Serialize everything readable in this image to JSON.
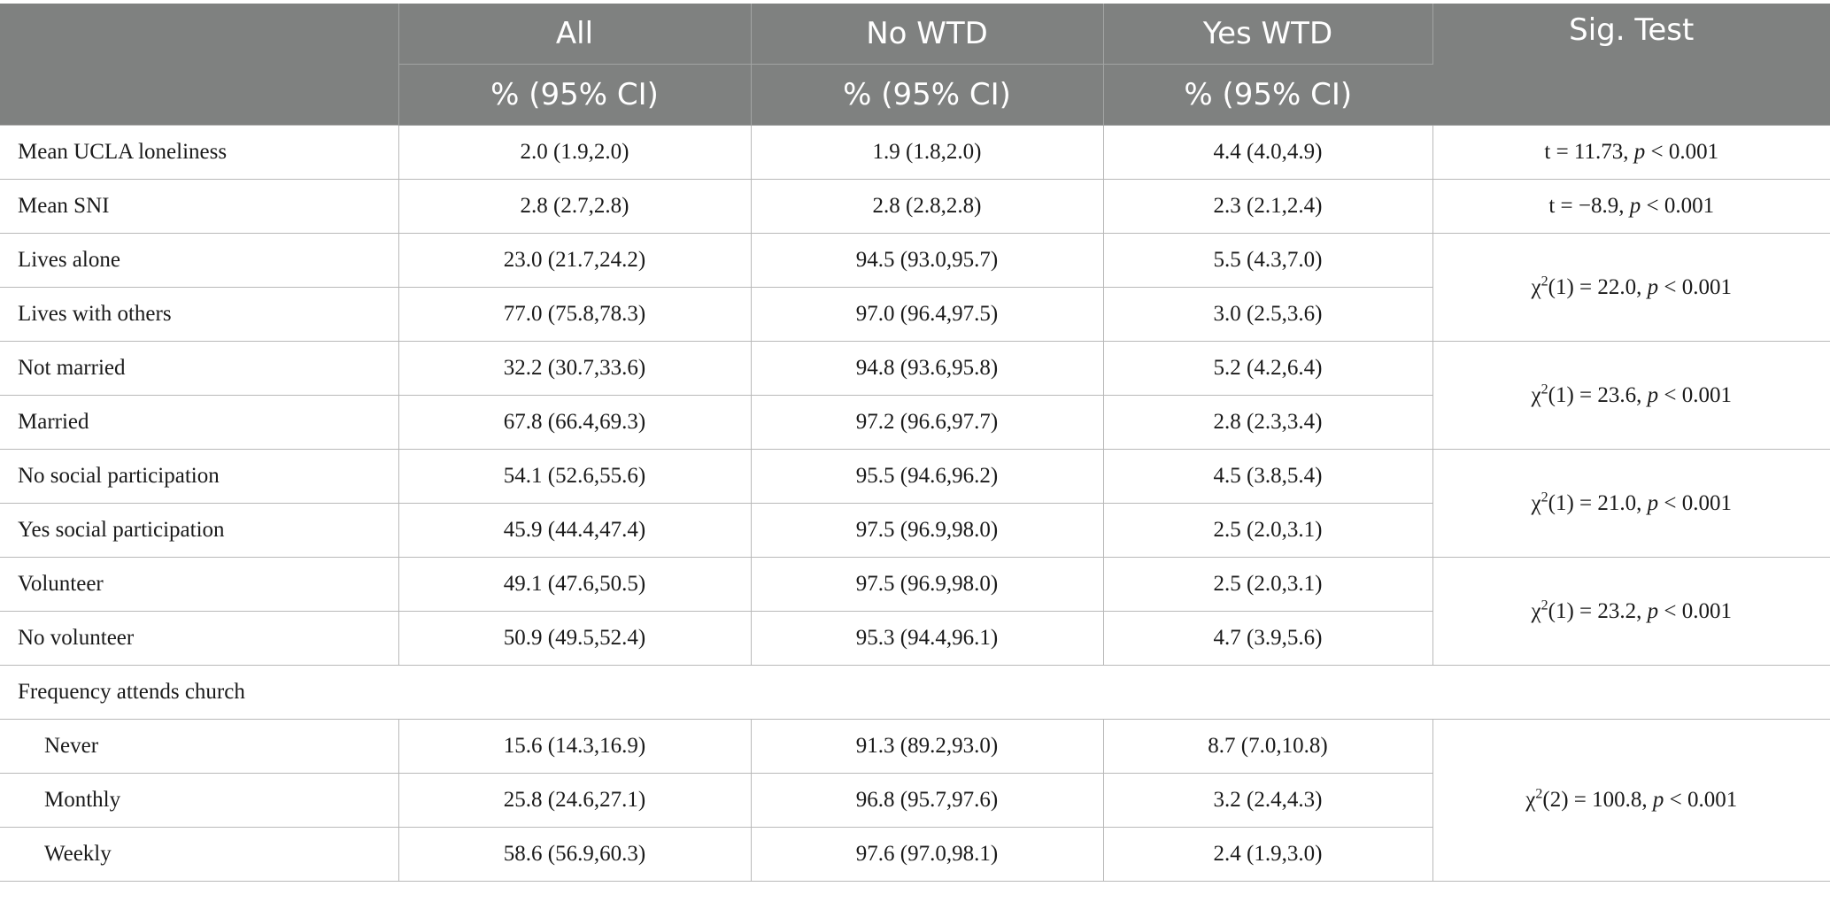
{
  "header": {
    "columns": [
      "",
      "All",
      "No WTD",
      "Yes WTD",
      "Sig. Test"
    ],
    "subheader": [
      "% (95% CI)",
      "% (95% CI)",
      "% (95% CI)"
    ]
  },
  "rows": [
    {
      "label": "Mean UCLA loneliness",
      "all": "2.0 (1.9,2.0)",
      "no_wtd": "1.9 (1.8,2.0)",
      "yes_wtd": "4.4 (4.0,4.9)",
      "sig": {
        "pre": "t = 11.73, ",
        "p": "p",
        "post": " < 0.001"
      }
    },
    {
      "label": "Mean SNI",
      "all": "2.8 (2.7,2.8)",
      "no_wtd": "2.8 (2.8,2.8)",
      "yes_wtd": "2.3 (2.1,2.4)",
      "sig": {
        "pre": "t = −8.9, ",
        "p": "p",
        "post": " < 0.001"
      }
    },
    {
      "label": "Lives alone",
      "all": "23.0 (21.7,24.2)",
      "no_wtd": "94.5 (93.0,95.7)",
      "yes_wtd": "5.5 (4.3,7.0)"
    },
    {
      "label": "Lives with others",
      "all": "77.0 (75.8,78.3)",
      "no_wtd": "97.0 (96.4,97.5)",
      "yes_wtd": "3.0 (2.5,3.6)"
    },
    {
      "label": "Not married",
      "all": "32.2 (30.7,33.6)",
      "no_wtd": "94.8 (93.6,95.8)",
      "yes_wtd": "5.2 (4.2,6.4)"
    },
    {
      "label": "Married",
      "all": "67.8 (66.4,69.3)",
      "no_wtd": "97.2 (96.6,97.7)",
      "yes_wtd": "2.8 (2.3,3.4)"
    },
    {
      "label": "No social participation",
      "all": "54.1 (52.6,55.6)",
      "no_wtd": "95.5 (94.6,96.2)",
      "yes_wtd": "4.5 (3.8,5.4)"
    },
    {
      "label": "Yes social participation",
      "all": "45.9 (44.4,47.4)",
      "no_wtd": "97.5 (96.9,98.0)",
      "yes_wtd": "2.5 (2.0,3.1)"
    },
    {
      "label": "Volunteer",
      "all": "49.1 (47.6,50.5)",
      "no_wtd": "97.5 (96.9,98.0)",
      "yes_wtd": "2.5 (2.0,3.1)"
    },
    {
      "label": "No volunteer",
      "all": "50.9 (49.5,52.4)",
      "no_wtd": "95.3 (94.4,96.1)",
      "yes_wtd": "4.7 (3.9,5.6)"
    },
    {
      "label": "Frequency attends church"
    },
    {
      "label": "Never",
      "all": "15.6 (14.3,16.9)",
      "no_wtd": "91.3 (89.2,93.0)",
      "yes_wtd": "8.7 (7.0,10.8)"
    },
    {
      "label": "Monthly",
      "all": "25.8 (24.6,27.1)",
      "no_wtd": "96.8 (95.7,97.6)",
      "yes_wtd": "3.2 (2.4,4.3)"
    },
    {
      "label": "Weekly",
      "all": "58.6 (56.9,60.3)",
      "no_wtd": "97.6 (97.0,98.1)",
      "yes_wtd": "2.4 (1.9,3.0)"
    }
  ],
  "group_tests": [
    {
      "chi": "χ",
      "sup": "2",
      "df": "(1) = 22.0, ",
      "p": "p",
      "post": " < 0.001"
    },
    {
      "chi": "χ",
      "sup": "2",
      "df": "(1) = 23.6, ",
      "p": "p",
      "post": " < 0.001"
    },
    {
      "chi": "χ",
      "sup": "2",
      "df": "(1) = 21.0, ",
      "p": "p",
      "post": " < 0.001"
    },
    {
      "chi": "χ",
      "sup": "2",
      "df": "(1) = 23.2, ",
      "p": "p",
      "post": " < 0.001"
    },
    {
      "chi": "χ",
      "sup": "2",
      "df": "(2) = 100.8, ",
      "p": "p",
      "post": " < 0.001"
    }
  ]
}
